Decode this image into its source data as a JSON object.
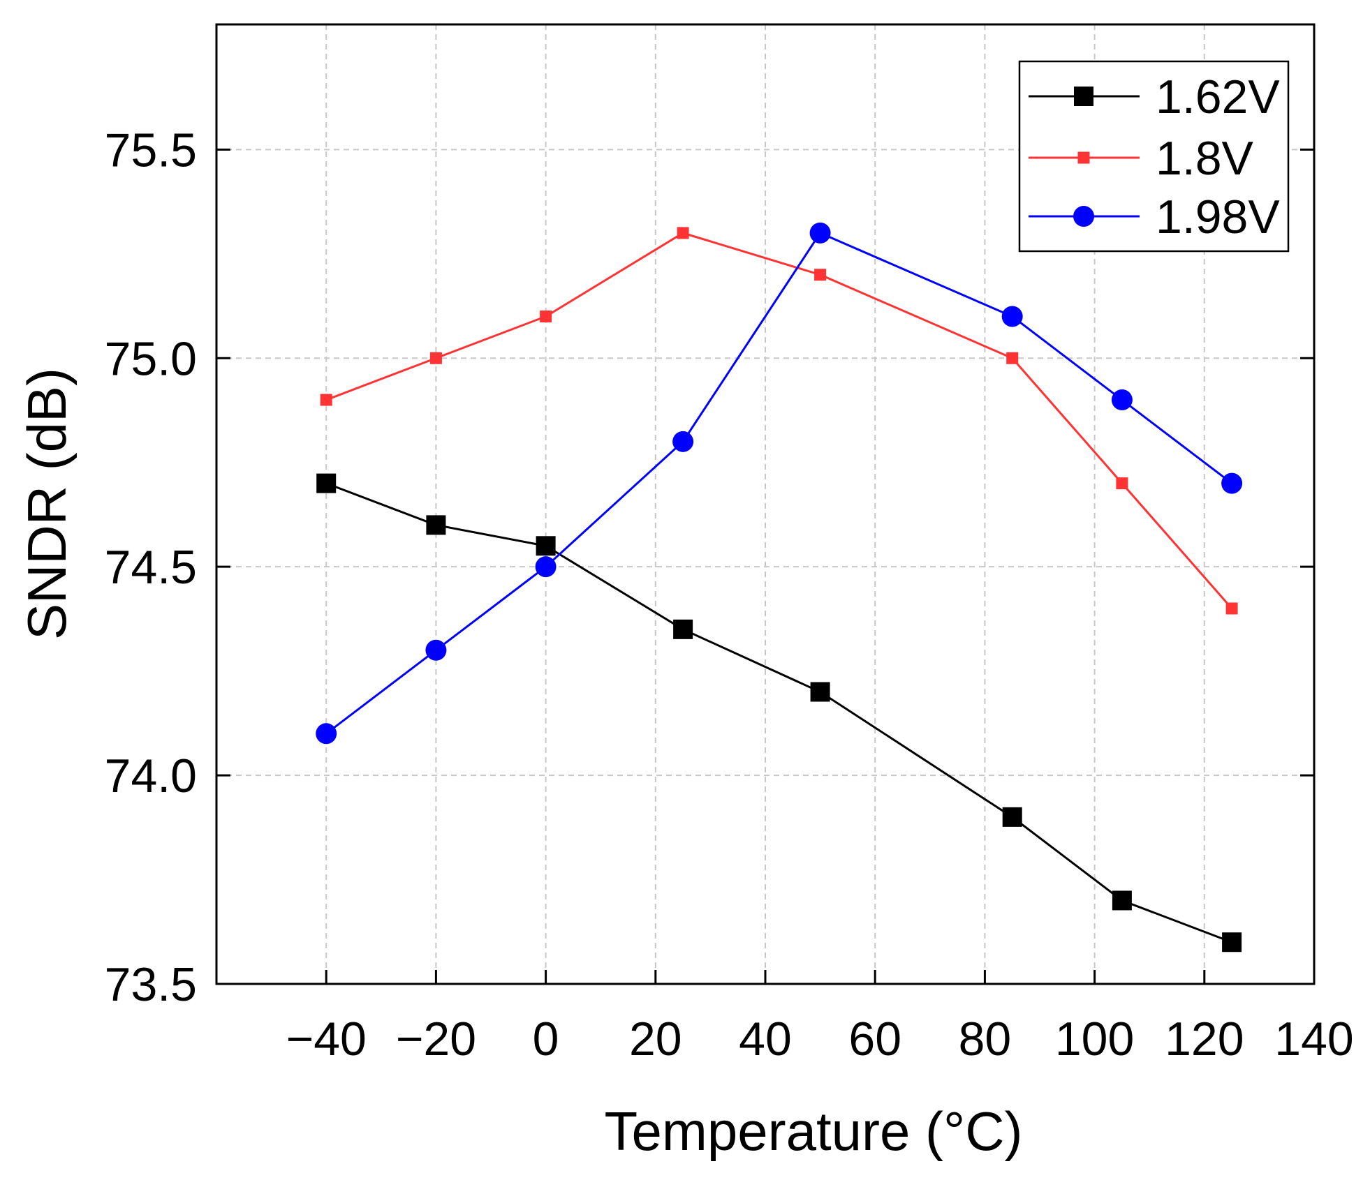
{
  "chart_data": {
    "type": "line",
    "title": "",
    "xlabel": "Temperature (°C)",
    "ylabel": "SNDR (dB)",
    "xlim": [
      -60,
      140
    ],
    "ylim": [
      73.5,
      75.8
    ],
    "x_ticks": [
      -40,
      -20,
      0,
      20,
      40,
      60,
      80,
      100,
      120,
      140
    ],
    "x_tick_labels": [
      "−40",
      "−20",
      "0",
      "20",
      "40",
      "60",
      "80",
      "100",
      "120",
      "140"
    ],
    "y_ticks": [
      73.5,
      74.0,
      74.5,
      75.0,
      75.5
    ],
    "y_tick_labels": [
      "73.5",
      "74.0",
      "74.5",
      "75.0",
      "75.5"
    ],
    "grid": true,
    "legend_position": "top-right",
    "x": [
      -40,
      -20,
      0,
      25,
      50,
      85,
      105,
      125
    ],
    "series": [
      {
        "name": "1.62V",
        "color": "#000000",
        "marker": "square-large",
        "values": [
          74.7,
          74.6,
          74.55,
          74.35,
          74.2,
          73.9,
          73.7,
          73.6
        ]
      },
      {
        "name": "1.8V",
        "color": "#ff3333",
        "marker": "square-small",
        "values": [
          74.9,
          75.0,
          75.1,
          75.3,
          75.2,
          75.0,
          74.7,
          74.4
        ]
      },
      {
        "name": "1.98V",
        "color": "#0000ff",
        "marker": "circle",
        "values": [
          74.1,
          74.3,
          74.5,
          74.8,
          75.3,
          75.1,
          74.9,
          74.7
        ]
      }
    ]
  }
}
